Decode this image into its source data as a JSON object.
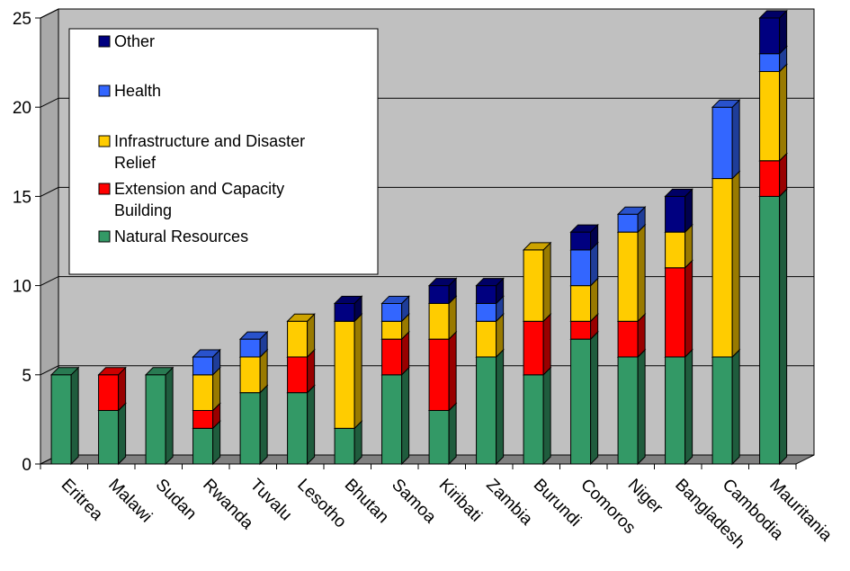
{
  "chart_data": {
    "type": "bar",
    "stacked": true,
    "three_d": true,
    "title": "",
    "xlabel": "",
    "ylabel": "",
    "ylim": [
      0,
      25
    ],
    "yticks": [
      0,
      5,
      10,
      15,
      20,
      25
    ],
    "grid": true,
    "legend_position": "top-left",
    "categories": [
      "Eritrea",
      "Malawi",
      "Sudan",
      "Rwanda",
      "Tuvalu",
      "Lesotho",
      "Bhutan",
      "Samoa",
      "Kiribati",
      "Zambia",
      "Burundi",
      "Comoros",
      "Niger",
      "Bangladesh",
      "Cambodia",
      "Mauritania"
    ],
    "series": [
      {
        "name": "Natural Resources",
        "color": "#339966",
        "values": [
          5,
          3,
          5,
          2,
          4,
          4,
          2,
          5,
          3,
          6,
          5,
          7,
          6,
          6,
          6,
          15
        ]
      },
      {
        "name": "Extension and Capacity Building",
        "color": "#ff0000",
        "values": [
          0,
          2,
          0,
          1,
          0,
          2,
          0,
          2,
          4,
          0,
          3,
          1,
          2,
          5,
          0,
          2
        ]
      },
      {
        "name": "Infrastructure and Disaster Relief",
        "color": "#ffcc00",
        "values": [
          0,
          0,
          0,
          2,
          2,
          2,
          6,
          1,
          2,
          2,
          4,
          2,
          5,
          2,
          10,
          5
        ]
      },
      {
        "name": "Health",
        "color": "#3366ff",
        "values": [
          0,
          0,
          0,
          1,
          1,
          0,
          0,
          1,
          0,
          1,
          0,
          2,
          1,
          0,
          4,
          1
        ]
      },
      {
        "name": "Other",
        "color": "#000080",
        "values": [
          0,
          0,
          0,
          0,
          0,
          0,
          1,
          0,
          1,
          1,
          0,
          1,
          0,
          2,
          0,
          2
        ]
      }
    ],
    "legend": [
      {
        "color": "#000080",
        "lines": [
          "Other"
        ]
      },
      {
        "color": "#3366ff",
        "lines": [
          "Health"
        ]
      },
      {
        "color": "#ffcc00",
        "lines": [
          "Infrastructure and Disaster",
          "Relief"
        ]
      },
      {
        "color": "#ff0000",
        "lines": [
          "Extension and Capacity",
          "Building"
        ]
      },
      {
        "color": "#339966",
        "lines": [
          "Natural Resources"
        ]
      }
    ]
  }
}
